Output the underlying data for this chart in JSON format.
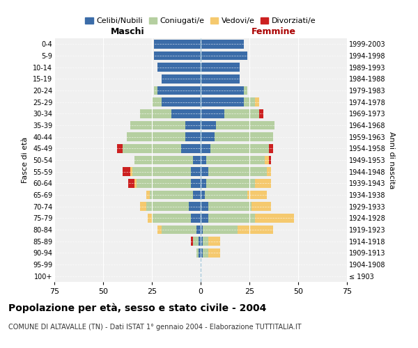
{
  "age_groups": [
    "100+",
    "95-99",
    "90-94",
    "85-89",
    "80-84",
    "75-79",
    "70-74",
    "65-69",
    "60-64",
    "55-59",
    "50-54",
    "45-49",
    "40-44",
    "35-39",
    "30-34",
    "25-29",
    "20-24",
    "15-19",
    "10-14",
    "5-9",
    "0-4"
  ],
  "birth_years": [
    "≤ 1903",
    "1904-1908",
    "1909-1913",
    "1914-1918",
    "1919-1923",
    "1924-1928",
    "1929-1933",
    "1934-1938",
    "1939-1943",
    "1944-1948",
    "1949-1953",
    "1954-1958",
    "1959-1963",
    "1964-1968",
    "1969-1973",
    "1974-1978",
    "1979-1983",
    "1984-1988",
    "1989-1993",
    "1994-1998",
    "1999-2003"
  ],
  "colors": {
    "celibi": "#3b6ca8",
    "coniugati": "#b5cfa0",
    "vedovi": "#f5c96e",
    "divorziati": "#cc2020"
  },
  "males": {
    "celibi": [
      0,
      0,
      1,
      1,
      2,
      5,
      6,
      4,
      5,
      5,
      4,
      10,
      8,
      8,
      15,
      20,
      22,
      20,
      22,
      24,
      24
    ],
    "coniugati": [
      0,
      0,
      1,
      3,
      18,
      20,
      22,
      22,
      28,
      30,
      30,
      30,
      30,
      28,
      16,
      5,
      2,
      0,
      0,
      0,
      0
    ],
    "vedovi": [
      0,
      0,
      0,
      0,
      2,
      2,
      3,
      2,
      1,
      1,
      0,
      0,
      0,
      0,
      0,
      0,
      0,
      0,
      0,
      0,
      0
    ],
    "divorziati": [
      0,
      0,
      0,
      1,
      0,
      0,
      0,
      0,
      3,
      4,
      0,
      3,
      0,
      0,
      0,
      0,
      0,
      0,
      0,
      0,
      0
    ]
  },
  "females": {
    "celibi": [
      0,
      0,
      1,
      1,
      1,
      4,
      4,
      2,
      3,
      4,
      3,
      5,
      7,
      8,
      12,
      22,
      22,
      20,
      20,
      24,
      22
    ],
    "coniugati": [
      0,
      0,
      3,
      3,
      18,
      24,
      22,
      22,
      25,
      30,
      30,
      30,
      30,
      30,
      18,
      6,
      2,
      0,
      0,
      0,
      0
    ],
    "vedovi": [
      0,
      0,
      6,
      6,
      18,
      20,
      10,
      10,
      8,
      2,
      2,
      0,
      0,
      0,
      0,
      2,
      0,
      0,
      0,
      0,
      0
    ],
    "divorziati": [
      0,
      0,
      0,
      0,
      0,
      0,
      0,
      0,
      0,
      0,
      1,
      2,
      0,
      0,
      2,
      0,
      0,
      0,
      0,
      0,
      0
    ]
  },
  "title": "Popolazione per età, sesso e stato civile - 2004",
  "subtitle": "COMUNE DI ALTAVALLE (TN) - Dati ISTAT 1° gennaio 2004 - Elaborazione TUTTITALIA.IT",
  "xlabel_left": "Maschi",
  "xlabel_right": "Femmine",
  "ylabel_left": "Fasce di età",
  "ylabel_right": "Anni di nascita",
  "xlim": 75,
  "legend_labels": [
    "Celibi/Nubili",
    "Coniugati/e",
    "Vedovi/e",
    "Divorziati/e"
  ],
  "background_color": "#f0f0f0"
}
